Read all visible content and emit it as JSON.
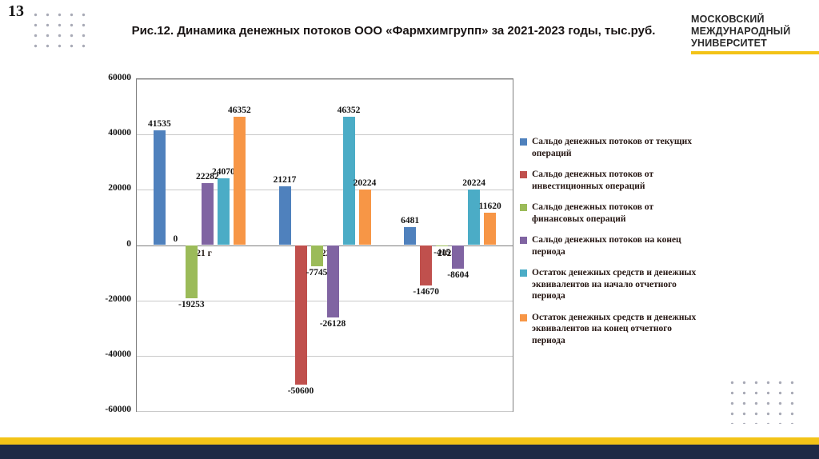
{
  "page": {
    "number": "13"
  },
  "title": "Рис.12. Динамика денежных потоков ООО «Фармхимгрупп» за 2021-2023 годы, тыс.руб.",
  "logo": {
    "lines": [
      "МОСКОВСКИЙ",
      "МЕЖДУНАРОДНЫЙ",
      "УНИВЕРСИТЕТ"
    ]
  },
  "brand": {
    "accent_yellow": "#F3C317",
    "footer_navy": "#1E2A45"
  },
  "chart_data": {
    "type": "bar",
    "categories": [
      "2021 г",
      "2022 г",
      "2023 г"
    ],
    "series": [
      {
        "name": "Сальдо денежных потоков от текущих операций",
        "color": "#4F81BD",
        "values": [
          41535,
          21217,
          6481
        ]
      },
      {
        "name": "Сальдо денежных потоков от инвестиционных операций",
        "color": "#C0504D",
        "values": [
          0,
          -50600,
          -14670
        ]
      },
      {
        "name": "Сальдо денежных потоков от финансовых операций",
        "color": "#9BBB59",
        "values": [
          -19253,
          -7745,
          -415
        ]
      },
      {
        "name": "Сальдо денежных потоков на конец периода",
        "color": "#8064A2",
        "values": [
          22282,
          -26128,
          -8604
        ]
      },
      {
        "name": "Остаток денежных средств и денежных эквивалентов на начало отчетного периода",
        "color": "#4BACC6",
        "values": [
          24070,
          46352,
          20224
        ]
      },
      {
        "name": "Остаток денежных средств и денежных эквивалентов на конец отчетного периода",
        "color": "#F79646",
        "values": [
          46352,
          20224,
          11620
        ]
      }
    ],
    "ylim": [
      -60000,
      60000
    ],
    "yticks": [
      60000,
      40000,
      20000,
      0,
      -20000,
      -40000,
      -60000
    ],
    "grid": true,
    "legend_position": "right",
    "xlabel": "",
    "ylabel": ""
  }
}
